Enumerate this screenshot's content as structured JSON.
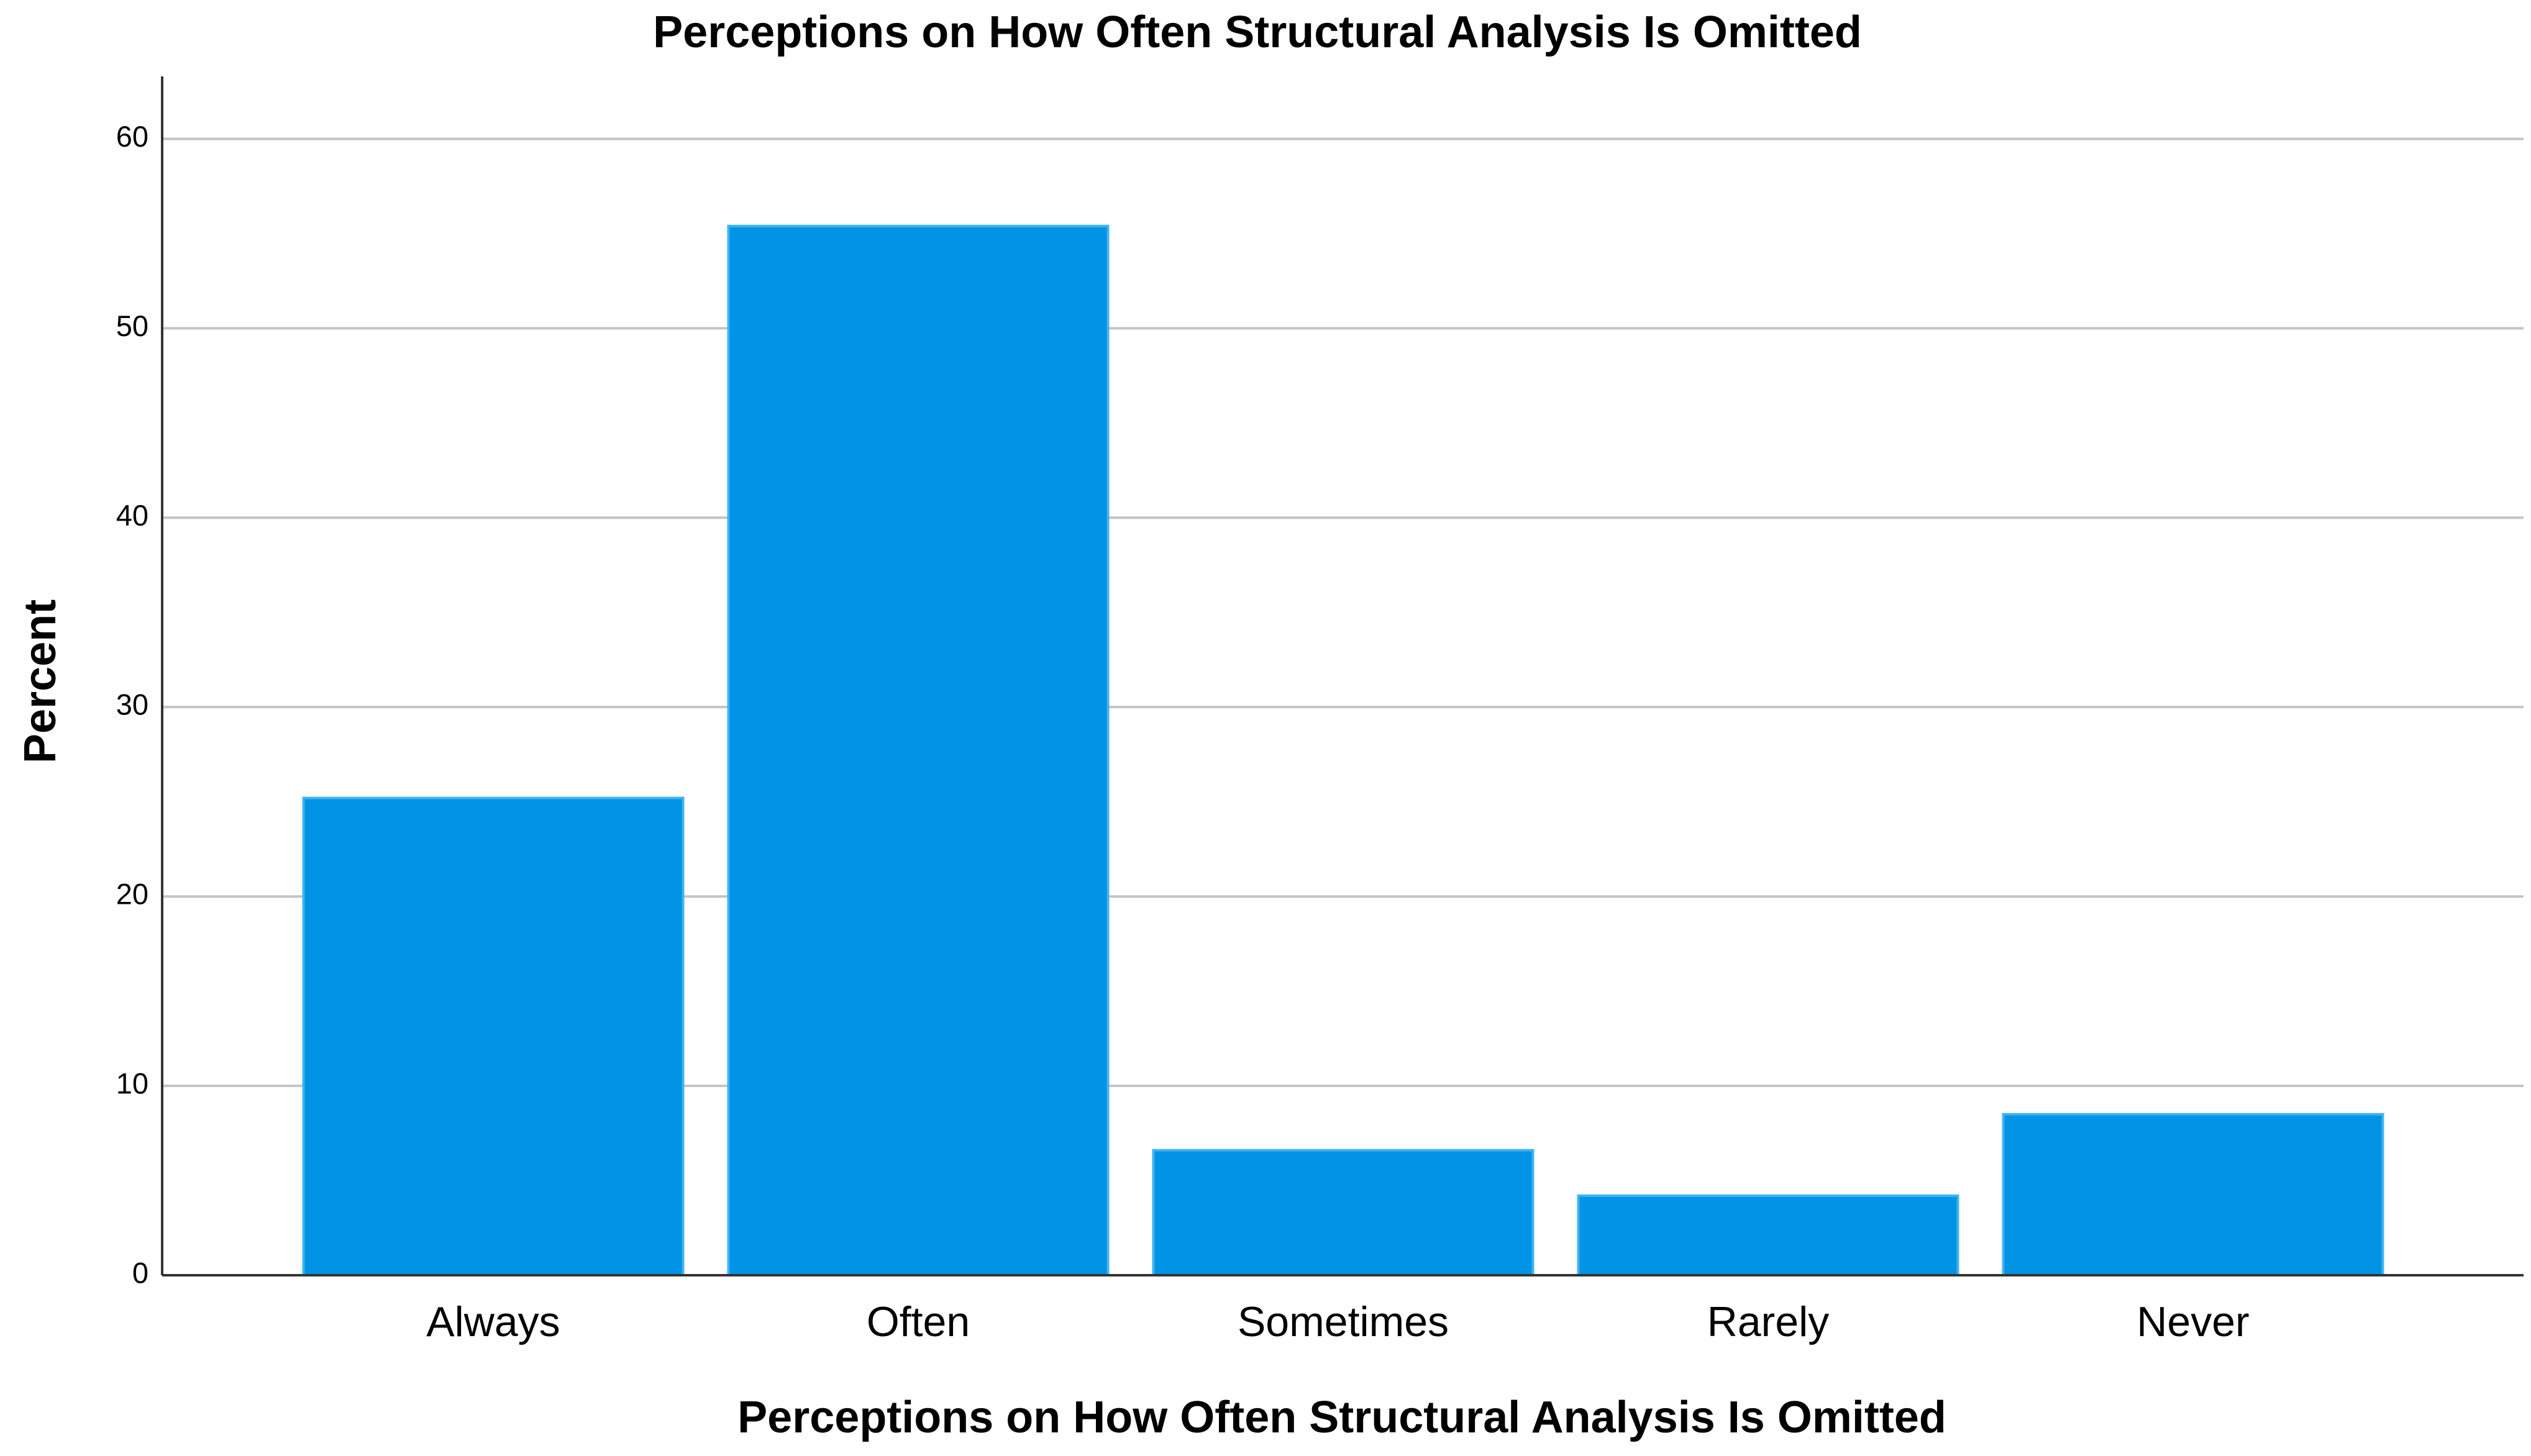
{
  "chart_data": {
    "type": "bar",
    "title": "Perceptions on How Often Structural Analysis Is Omitted",
    "x_label": "Perceptions on How Often Structural Analysis Is Omitted",
    "y_label": "Percent",
    "categories": [
      "Always",
      "Often",
      "Sometimes",
      "Rarely",
      "Never"
    ],
    "values": [
      25.2,
      55.4,
      6.6,
      4.2,
      8.5
    ],
    "color": "#0093e6",
    "ylim": [
      0,
      63.3
    ],
    "yticks": [
      0,
      10,
      20,
      30,
      40,
      50,
      60
    ],
    "grid": true
  }
}
